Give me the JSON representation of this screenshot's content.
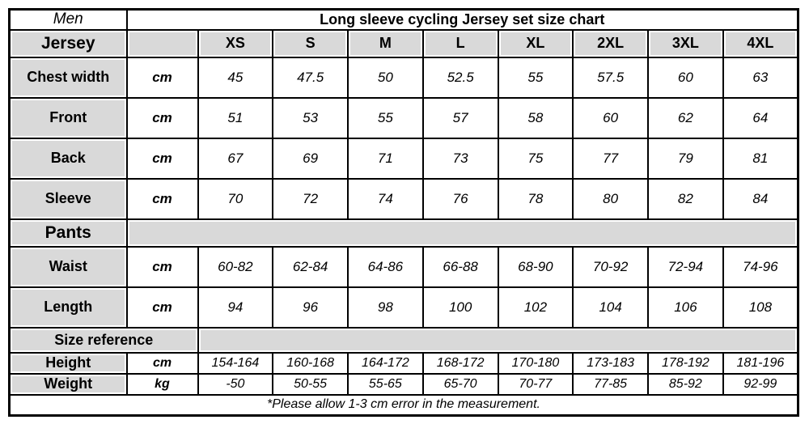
{
  "table": {
    "gender_label": "Men",
    "title": "Long sleeve cycling Jersey set size chart",
    "jersey_section_label": "Jersey",
    "sizes": [
      "XS",
      "S",
      "M",
      "L",
      "XL",
      "2XL",
      "3XL",
      "4XL"
    ],
    "jersey_rows": [
      {
        "label": "Chest width",
        "unit": "cm",
        "values": [
          "45",
          "47.5",
          "50",
          "52.5",
          "55",
          "57.5",
          "60",
          "63"
        ]
      },
      {
        "label": "Front",
        "unit": "cm",
        "values": [
          "51",
          "53",
          "55",
          "57",
          "58",
          "60",
          "62",
          "64"
        ]
      },
      {
        "label": "Back",
        "unit": "cm",
        "values": [
          "67",
          "69",
          "71",
          "73",
          "75",
          "77",
          "79",
          "81"
        ]
      },
      {
        "label": "Sleeve",
        "unit": "cm",
        "values": [
          "70",
          "72",
          "74",
          "76",
          "78",
          "80",
          "82",
          "84"
        ]
      }
    ],
    "pants_section_label": "Pants",
    "pants_rows": [
      {
        "label": "Waist",
        "unit": "cm",
        "values": [
          "60-82",
          "62-84",
          "64-86",
          "66-88",
          "68-90",
          "70-92",
          "72-94",
          "74-96"
        ]
      },
      {
        "label": "Length",
        "unit": "cm",
        "values": [
          "94",
          "96",
          "98",
          "100",
          "102",
          "104",
          "106",
          "108"
        ]
      }
    ],
    "size_reference_label": "Size reference",
    "reference_rows": [
      {
        "label": "Height",
        "unit": "cm",
        "values": [
          "154-164",
          "160-168",
          "164-172",
          "168-172",
          "170-180",
          "173-183",
          "178-192",
          "181-196"
        ]
      },
      {
        "label": "Weight",
        "unit": "kg",
        "values": [
          "-50",
          "50-55",
          "55-65",
          "65-70",
          "70-77",
          "77-85",
          "85-92",
          "92-99"
        ]
      }
    ],
    "footnote": "*Please allow 1-3 cm error in the measurement.",
    "colors": {
      "header_bg": "#d9d9d9",
      "border": "#000000",
      "text": "#000000",
      "page_bg": "#ffffff"
    }
  }
}
